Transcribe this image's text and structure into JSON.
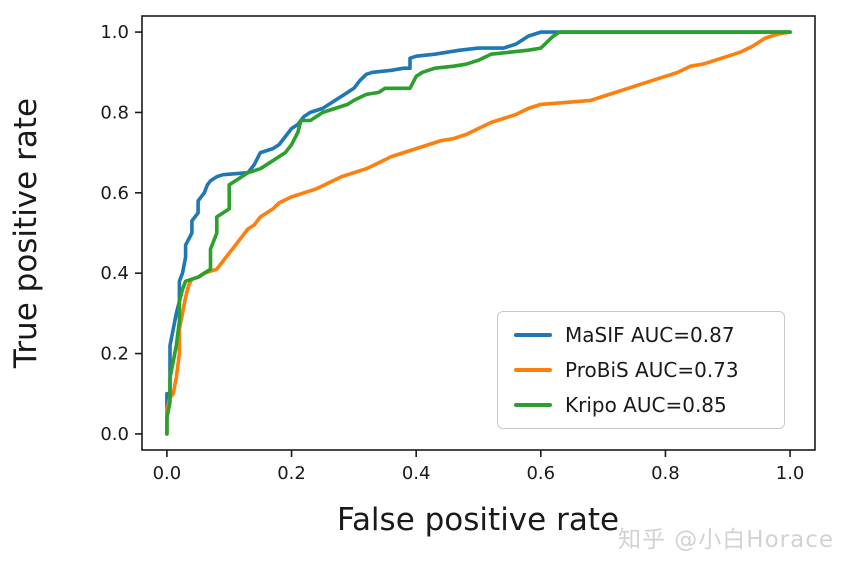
{
  "watermark": "知乎 @小白Horace",
  "chart_data": {
    "type": "line",
    "title": "",
    "xlabel": "False positive rate",
    "ylabel": "True positive rate",
    "xlim": [
      -0.04,
      1.04
    ],
    "ylim": [
      -0.04,
      1.04
    ],
    "xticks": [
      0.0,
      0.2,
      0.4,
      0.6,
      0.8,
      1.0
    ],
    "yticks": [
      0.0,
      0.2,
      0.4,
      0.6,
      0.8,
      1.0
    ],
    "grid": false,
    "legend_position": "lower right",
    "series": [
      {
        "name": "MaSIF AUC=0.87",
        "color": "#1f77b4",
        "x": [
          0,
          0,
          0.005,
          0.005,
          0.01,
          0.015,
          0.02,
          0.02,
          0.025,
          0.03,
          0.03,
          0.04,
          0.04,
          0.05,
          0.05,
          0.06,
          0.065,
          0.07,
          0.08,
          0.09,
          0.13,
          0.14,
          0.15,
          0.17,
          0.18,
          0.19,
          0.2,
          0.21,
          0.22,
          0.23,
          0.25,
          0.26,
          0.28,
          0.29,
          0.3,
          0.31,
          0.32,
          0.33,
          0.36,
          0.38,
          0.39,
          0.39,
          0.4,
          0.43,
          0.45,
          0.47,
          0.5,
          0.54,
          0.56,
          0.58,
          0.6,
          1.0
        ],
        "y": [
          0,
          0.1,
          0.1,
          0.22,
          0.26,
          0.3,
          0.33,
          0.38,
          0.4,
          0.44,
          0.47,
          0.5,
          0.53,
          0.55,
          0.58,
          0.6,
          0.62,
          0.63,
          0.64,
          0.645,
          0.65,
          0.67,
          0.7,
          0.71,
          0.72,
          0.74,
          0.76,
          0.77,
          0.79,
          0.8,
          0.81,
          0.82,
          0.84,
          0.85,
          0.86,
          0.88,
          0.895,
          0.9,
          0.905,
          0.91,
          0.91,
          0.935,
          0.94,
          0.945,
          0.95,
          0.955,
          0.96,
          0.96,
          0.97,
          0.99,
          1.0,
          1.0
        ]
      },
      {
        "name": "ProBiS AUC=0.73",
        "color": "#ff7f0e",
        "x": [
          0,
          0,
          0.005,
          0.01,
          0.015,
          0.02,
          0.02,
          0.025,
          0.03,
          0.035,
          0.04,
          0.05,
          0.06,
          0.08,
          0.09,
          0.1,
          0.11,
          0.12,
          0.13,
          0.14,
          0.15,
          0.16,
          0.17,
          0.18,
          0.2,
          0.22,
          0.24,
          0.26,
          0.28,
          0.3,
          0.32,
          0.34,
          0.36,
          0.38,
          0.4,
          0.42,
          0.44,
          0.46,
          0.48,
          0.5,
          0.52,
          0.54,
          0.56,
          0.58,
          0.6,
          0.64,
          0.68,
          0.7,
          0.72,
          0.74,
          0.76,
          0.78,
          0.8,
          0.82,
          0.84,
          0.86,
          0.88,
          0.9,
          0.92,
          0.94,
          0.96,
          0.98,
          1.0
        ],
        "y": [
          0,
          0.06,
          0.09,
          0.1,
          0.14,
          0.2,
          0.26,
          0.3,
          0.34,
          0.37,
          0.385,
          0.39,
          0.4,
          0.41,
          0.43,
          0.45,
          0.47,
          0.49,
          0.51,
          0.52,
          0.54,
          0.55,
          0.56,
          0.575,
          0.59,
          0.6,
          0.61,
          0.625,
          0.64,
          0.65,
          0.66,
          0.675,
          0.69,
          0.7,
          0.71,
          0.72,
          0.73,
          0.735,
          0.745,
          0.76,
          0.775,
          0.785,
          0.795,
          0.81,
          0.82,
          0.825,
          0.83,
          0.84,
          0.85,
          0.86,
          0.87,
          0.88,
          0.89,
          0.9,
          0.915,
          0.92,
          0.93,
          0.94,
          0.95,
          0.965,
          0.985,
          0.995,
          1.0
        ]
      },
      {
        "name": "Kripo AUC=0.85",
        "color": "#2ca02c",
        "x": [
          0,
          0,
          0.005,
          0.005,
          0.01,
          0.015,
          0.02,
          0.02,
          0.025,
          0.03,
          0.04,
          0.05,
          0.06,
          0.07,
          0.07,
          0.08,
          0.08,
          0.09,
          0.1,
          0.1,
          0.11,
          0.12,
          0.13,
          0.15,
          0.16,
          0.18,
          0.19,
          0.2,
          0.21,
          0.215,
          0.23,
          0.24,
          0.25,
          0.27,
          0.29,
          0.3,
          0.32,
          0.34,
          0.35,
          0.39,
          0.4,
          0.41,
          0.43,
          0.46,
          0.48,
          0.5,
          0.52,
          0.55,
          0.58,
          0.6,
          0.62,
          0.63,
          1.0
        ],
        "y": [
          0,
          0.04,
          0.08,
          0.14,
          0.18,
          0.22,
          0.28,
          0.33,
          0.36,
          0.38,
          0.385,
          0.39,
          0.4,
          0.41,
          0.46,
          0.5,
          0.54,
          0.55,
          0.56,
          0.62,
          0.63,
          0.64,
          0.65,
          0.66,
          0.67,
          0.69,
          0.7,
          0.72,
          0.75,
          0.78,
          0.78,
          0.79,
          0.8,
          0.81,
          0.82,
          0.83,
          0.845,
          0.85,
          0.86,
          0.86,
          0.89,
          0.9,
          0.91,
          0.915,
          0.92,
          0.93,
          0.945,
          0.95,
          0.955,
          0.96,
          0.99,
          1.0,
          1.0
        ]
      }
    ]
  }
}
